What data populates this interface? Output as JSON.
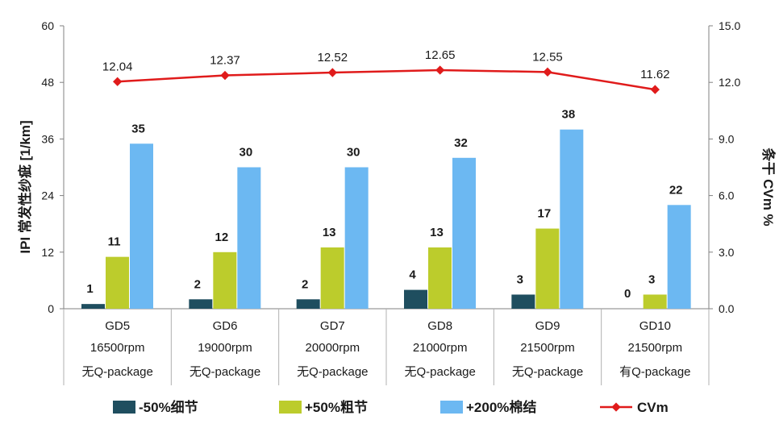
{
  "chart_data": {
    "type": "bar",
    "categories": [
      "GD5",
      "GD6",
      "GD7",
      "GD8",
      "GD9",
      "GD10"
    ],
    "category_rpm": [
      "16500rpm",
      "19000rpm",
      "20000rpm",
      "21000rpm",
      "21500rpm",
      "21500rpm"
    ],
    "category_package": [
      "无Q-package",
      "无Q-package",
      "无Q-package",
      "无Q-package",
      "无Q-package",
      "有Q-package"
    ],
    "series": [
      {
        "name": "-50%细节",
        "values": [
          1,
          2,
          2,
          4,
          3,
          0
        ],
        "color": "#1f4e5f",
        "axis": "left"
      },
      {
        "name": "+50%粗节",
        "values": [
          11,
          12,
          13,
          13,
          17,
          3
        ],
        "color": "#bccc2c",
        "axis": "left"
      },
      {
        "name": "+200%棉结",
        "values": [
          35,
          30,
          30,
          32,
          38,
          22
        ],
        "color": "#6cb8f2",
        "axis": "left"
      },
      {
        "name": "CVm",
        "type": "line",
        "values": [
          12.04,
          12.37,
          12.52,
          12.65,
          12.55,
          11.62
        ],
        "color": "#e01b1b",
        "axis": "right"
      }
    ],
    "ylabel": "IPI 常发性纱疵 [1/km]",
    "ylabel_right": "条干 CVm %",
    "ylim": [
      0,
      60
    ],
    "ylim_right": [
      0,
      15
    ],
    "yticks": [
      "0",
      "12",
      "24",
      "36",
      "48",
      "60"
    ],
    "yticks_right": [
      "0.0",
      "3.0",
      "6.0",
      "9.0",
      "12.0",
      "15.0"
    ],
    "legend_position": "bottom",
    "grid": false
  }
}
